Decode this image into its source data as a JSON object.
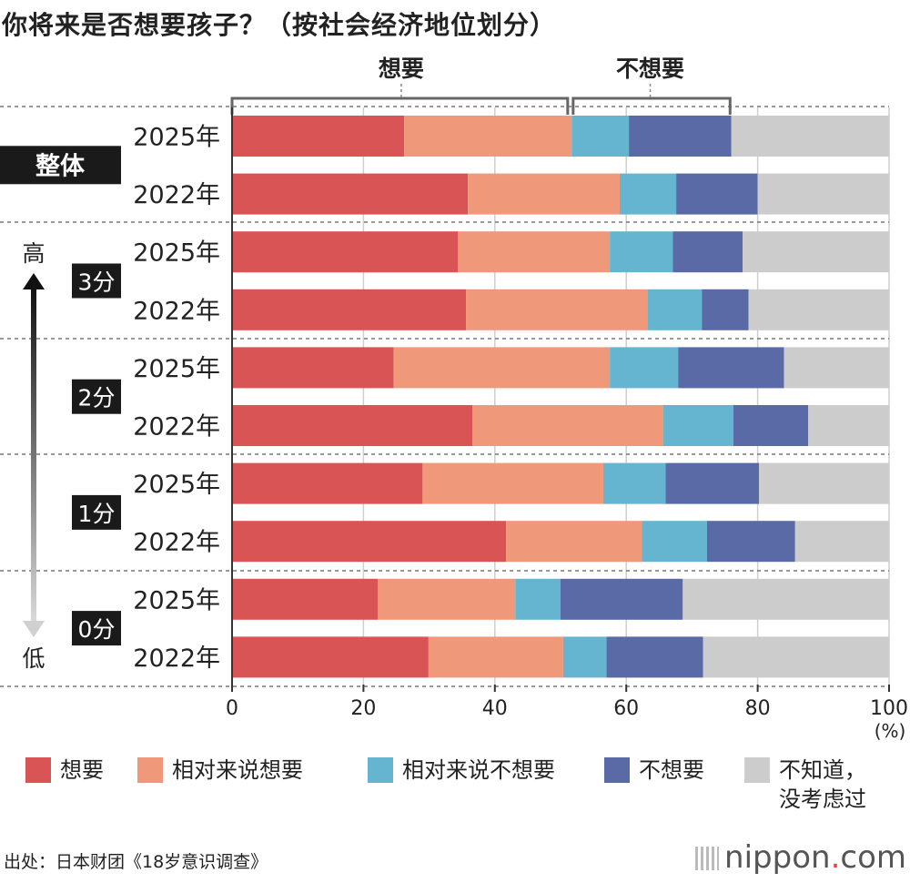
{
  "title": "你将来是否想要孩子？（按社会经济地位划分）",
  "colors": {
    "want": "#d95454",
    "rather_want": "#f0997a",
    "rather_not_want": "#66b5d0",
    "not_want": "#5a6aa6",
    "unknown": "#cccccc"
  },
  "chart_data": {
    "type": "bar",
    "orientation": "horizontal",
    "stacked": true,
    "xlim": [
      0,
      100
    ],
    "xticks": [
      "0",
      "20",
      "40",
      "60",
      "80",
      "100"
    ],
    "xunit": "(%)",
    "bracket_want_label": "想要",
    "bracket_not_want_label": "不想要",
    "axis_high_label": "高",
    "axis_low_label": "低",
    "groups": [
      {
        "label": "整体",
        "rows": [
          {
            "year": "2025年",
            "values": [
              26.2,
              25.5,
              8.7,
              15.6,
              24.0
            ]
          },
          {
            "year": "2022年",
            "values": [
              35.9,
              23.1,
              8.6,
              12.4,
              20.0
            ]
          }
        ]
      },
      {
        "label": "3分",
        "rows": [
          {
            "year": "2025年",
            "values": [
              34.4,
              23.1,
              9.6,
              10.6,
              22.3
            ]
          },
          {
            "year": "2022年",
            "values": [
              35.6,
              27.6,
              8.3,
              7.1,
              21.4
            ]
          }
        ]
      },
      {
        "label": "2分",
        "rows": [
          {
            "year": "2025年",
            "values": [
              24.6,
              32.9,
              10.4,
              16.1,
              16.0
            ]
          },
          {
            "year": "2022年",
            "values": [
              36.6,
              29.0,
              10.7,
              11.4,
              12.3
            ]
          }
        ]
      },
      {
        "label": "1分",
        "rows": [
          {
            "year": "2025年",
            "values": [
              29.0,
              27.5,
              9.5,
              14.2,
              19.8
            ]
          },
          {
            "year": "2022年",
            "values": [
              41.7,
              20.7,
              9.9,
              13.4,
              14.3
            ]
          }
        ]
      },
      {
        "label": "0分",
        "rows": [
          {
            "year": "2025年",
            "values": [
              22.2,
              20.9,
              6.9,
              18.6,
              31.4
            ]
          },
          {
            "year": "2022年",
            "values": [
              29.9,
              20.5,
              6.6,
              14.7,
              28.3
            ]
          }
        ]
      }
    ],
    "series": [
      {
        "key": "want",
        "name": "想要"
      },
      {
        "key": "rather_want",
        "name": "相对来说想要"
      },
      {
        "key": "rather_not_want",
        "name": "相对来说不想要"
      },
      {
        "key": "not_want",
        "name": "不想要"
      },
      {
        "key": "unknown",
        "name": "不知道，\n没考虑过"
      }
    ]
  },
  "source": "出处：日本财团《18岁意识调查》",
  "logo": {
    "name": "nippon",
    "dot": ".",
    "suffix": "com"
  }
}
